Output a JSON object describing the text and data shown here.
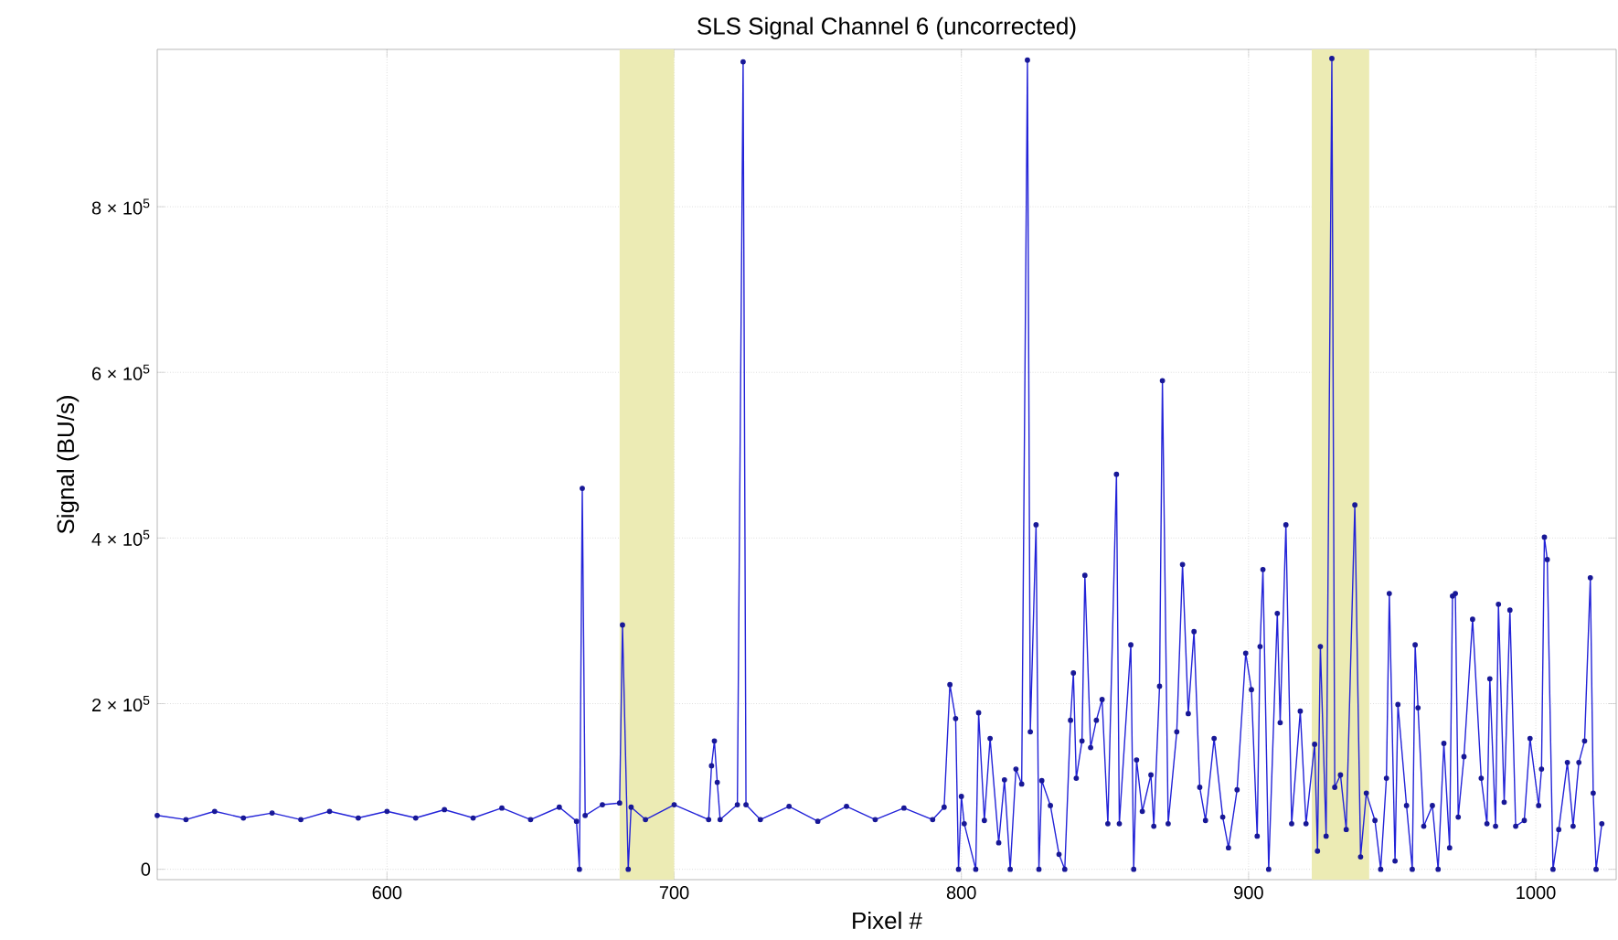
{
  "chart_data": {
    "type": "line",
    "title": "SLS Signal Channel 6 (uncorrected)",
    "xlabel": "Pixel #",
    "ylabel": "Signal (BU/s)",
    "xlim": [
      520,
      1028
    ],
    "ylim": [
      -12500,
      990000
    ],
    "xticks": [
      600,
      700,
      800,
      900,
      1000
    ],
    "yticks": [
      0,
      {
        "value": 200000,
        "label": "2 × 10$^{5}$"
      },
      {
        "value": 400000,
        "label": "4 × 10$^{5}$"
      },
      {
        "value": 600000,
        "label": "6 × 10$^{5}$"
      },
      {
        "value": 800000,
        "label": "8 × 10$^{5}$"
      }
    ],
    "grid": true,
    "marker": "circle",
    "line_style": "solid",
    "bands": [
      {
        "axis": "x",
        "from": 681,
        "to": 700,
        "color": "#ecebb4"
      },
      {
        "axis": "x",
        "from": 922,
        "to": 942,
        "color": "#ecebb4"
      }
    ],
    "series": [
      {
        "color": "#2323d8",
        "x": [
          520,
          530,
          540,
          550,
          560,
          570,
          580,
          590,
          600,
          610,
          620,
          630,
          640,
          650,
          660,
          666,
          667,
          668,
          669,
          675,
          681,
          682,
          684,
          685,
          690,
          700,
          712,
          713,
          714,
          715,
          716,
          722,
          724,
          725,
          730,
          740,
          750,
          760,
          770,
          780,
          790,
          794,
          796,
          798,
          799,
          800,
          801,
          805,
          806,
          808,
          810,
          813,
          815,
          817,
          819,
          821,
          823,
          824,
          826,
          827,
          828,
          831,
          834,
          836,
          838,
          839,
          840,
          842,
          843,
          845,
          847,
          849,
          851,
          854,
          855,
          859,
          860,
          861,
          863,
          866,
          867,
          869,
          870,
          872,
          875,
          877,
          879,
          881,
          883,
          885,
          888,
          891,
          893,
          896,
          899,
          901,
          903,
          904,
          905,
          907,
          910,
          911,
          913,
          915,
          918,
          920,
          923,
          924,
          925,
          927,
          929,
          930,
          932,
          934,
          937,
          939,
          941,
          944,
          946,
          948,
          949,
          951,
          952,
          955,
          957,
          958,
          959,
          961,
          964,
          966,
          968,
          970,
          971,
          972,
          973,
          975,
          978,
          981,
          983,
          984,
          986,
          987,
          989,
          991,
          993,
          996,
          998,
          1001,
          1002,
          1003,
          1004,
          1006,
          1008,
          1011,
          1013,
          1015,
          1017,
          1019,
          1020,
          1021,
          1023
        ],
        "values": [
          65000,
          60000,
          70000,
          62000,
          68000,
          60000,
          70000,
          62000,
          70000,
          62000,
          72000,
          62000,
          74000,
          60000,
          75000,
          58000,
          0,
          460000,
          65000,
          78000,
          80000,
          295000,
          0,
          75000,
          60000,
          78000,
          60000,
          125000,
          155000,
          105000,
          60000,
          78000,
          975000,
          78000,
          60000,
          76000,
          58000,
          76000,
          60000,
          74000,
          60000,
          75000,
          223000,
          182000,
          0,
          88000,
          55000,
          0,
          189000,
          59000,
          158000,
          32000,
          108000,
          0,
          121000,
          103000,
          977000,
          166000,
          416000,
          0,
          107000,
          77000,
          18000,
          0,
          180000,
          237000,
          110000,
          155000,
          355000,
          147000,
          180000,
          205000,
          55000,
          477000,
          55000,
          271000,
          0,
          132000,
          70000,
          114000,
          52000,
          221000,
          590000,
          55000,
          166000,
          368000,
          188000,
          287000,
          99000,
          59000,
          158000,
          63000,
          26000,
          96000,
          261000,
          217000,
          40000,
          269000,
          362000,
          0,
          309000,
          177000,
          416000,
          55000,
          191000,
          55000,
          151000,
          22000,
          269000,
          40000,
          979000,
          99000,
          114000,
          48000,
          440000,
          15000,
          92000,
          59000,
          0,
          110000,
          333000,
          10000,
          199000,
          77000,
          0,
          271000,
          195000,
          52000,
          77000,
          0,
          152000,
          26000,
          330000,
          333000,
          63000,
          136000,
          302000,
          110000,
          55000,
          230000,
          52000,
          320000,
          81000,
          313000,
          52000,
          59000,
          158000,
          77000,
          121000,
          401000,
          374000,
          0,
          48000,
          129000,
          52000,
          129000,
          155000,
          352000,
          92000,
          0,
          55000
        ]
      }
    ]
  }
}
